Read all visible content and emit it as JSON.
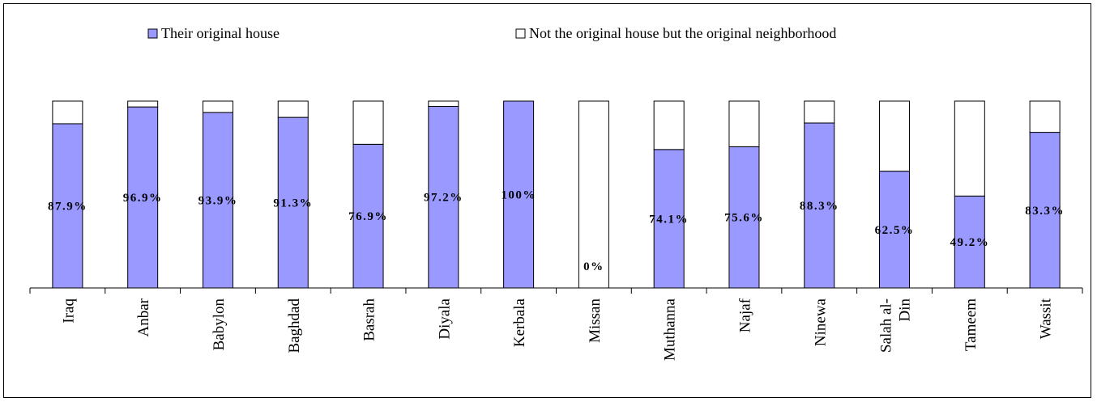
{
  "chart_data": {
    "type": "bar",
    "stacked": "percent",
    "categories": [
      "Iraq",
      "Anbar",
      "Babylon",
      "Baghdad",
      "Basrah",
      "Diyala",
      "Kerbala",
      "Missan",
      "Muthanna",
      "Najaf",
      "Ninewa",
      "Salah al-Din",
      "Tameem",
      "Wassit"
    ],
    "category_lines": [
      [
        "Iraq"
      ],
      [
        "Anbar"
      ],
      [
        "Babylon"
      ],
      [
        "Baghdad"
      ],
      [
        "Basrah"
      ],
      [
        "Diyala"
      ],
      [
        "Kerbala"
      ],
      [
        "Missan"
      ],
      [
        "Muthanna"
      ],
      [
        "Najaf"
      ],
      [
        "Ninewa"
      ],
      [
        "Salah al-",
        "Din"
      ],
      [
        "Tameem"
      ],
      [
        "Wassit"
      ]
    ],
    "series": [
      {
        "name": "Their original house",
        "color": "#9999ff",
        "values": [
          87.9,
          96.9,
          93.9,
          91.3,
          76.9,
          97.2,
          100,
          0,
          74.1,
          75.6,
          88.3,
          62.5,
          49.2,
          83.3
        ]
      },
      {
        "name": "Not the original house but the original neighborhood",
        "color": "#ffffff",
        "values": [
          12.1,
          3.1,
          6.1,
          8.7,
          23.1,
          2.8,
          0,
          100,
          25.9,
          24.4,
          11.7,
          37.5,
          50.8,
          16.7
        ]
      }
    ],
    "data_labels": [
      "87.9%",
      "96.9%",
      "93.9%",
      "91.3%",
      "76.9%",
      "97.2%",
      "100%",
      "0%",
      "74.1%",
      "75.6%",
      "88.3%",
      "62.5%",
      "49.2%",
      "83.3%"
    ],
    "ylim": [
      0,
      100
    ],
    "legend_position": "top",
    "grid": false
  }
}
